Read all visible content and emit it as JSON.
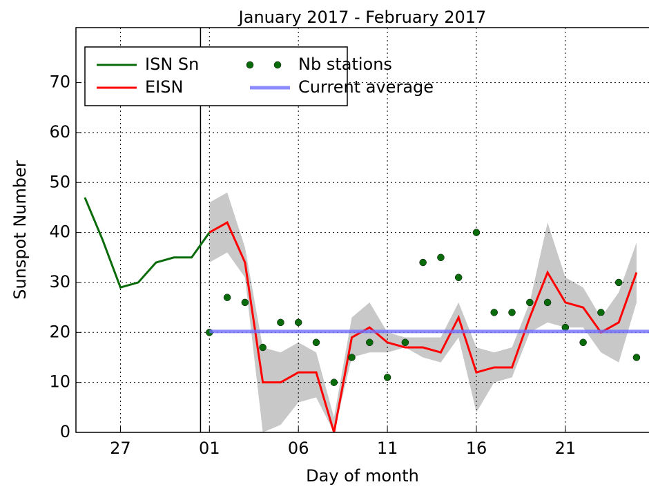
{
  "chart_data": {
    "type": "line",
    "title": "January 2017 - February 2017",
    "x_label": "Day of month",
    "y_label": "Sunspot Number",
    "xlim": [
      -7.5,
      24.7
    ],
    "ylim": [
      0,
      81
    ],
    "xticks": [
      {
        "value": -5,
        "label": "27"
      },
      {
        "value": 0,
        "label": "01"
      },
      {
        "value": 5,
        "label": "06"
      },
      {
        "value": 10,
        "label": "11"
      },
      {
        "value": 15,
        "label": "16"
      },
      {
        "value": 20,
        "label": "21"
      }
    ],
    "yticks": [
      0,
      10,
      20,
      30,
      40,
      50,
      60,
      70
    ],
    "grid": true,
    "vline": -0.5,
    "legend": "upper left",
    "band": {
      "color": "#c8c8c8",
      "x": [
        0,
        1,
        2,
        3,
        4,
        5,
        6,
        7,
        8,
        9,
        10,
        11,
        12,
        13,
        14,
        15,
        16,
        17,
        18,
        19,
        20,
        21,
        22,
        23,
        24
      ],
      "upper": [
        46,
        48,
        37,
        17,
        16,
        18,
        16,
        3,
        23,
        26,
        20,
        19,
        19,
        19,
        26,
        17,
        16,
        17,
        26,
        42,
        31,
        29,
        23,
        28,
        38
      ],
      "lower": [
        34,
        36,
        31,
        0,
        1.5,
        6,
        7,
        0,
        15,
        16,
        16,
        17,
        15,
        14,
        19,
        4,
        10,
        11,
        20,
        22,
        21,
        21,
        16,
        14,
        26
      ]
    },
    "series": [
      {
        "name": "ISN Sn",
        "type": "line",
        "color": "#0a6b0a",
        "x": [
          -7,
          -6,
          -5,
          -4,
          -3,
          -2,
          -1,
          0
        ],
        "values": [
          47,
          38.5,
          29,
          30,
          34,
          35,
          35,
          40
        ]
      },
      {
        "name": "EISN",
        "type": "line",
        "color": "#ff0000",
        "x": [
          0,
          1,
          2,
          3,
          4,
          5,
          6,
          7,
          8,
          9,
          10,
          11,
          12,
          13,
          14,
          15,
          16,
          17,
          18,
          19,
          20,
          21,
          22,
          23,
          24
        ],
        "values": [
          40,
          42,
          34,
          10,
          10,
          12,
          12,
          0,
          19,
          21,
          18,
          17,
          17,
          16,
          23,
          12,
          13,
          13,
          23,
          32,
          26,
          25,
          20,
          22,
          32
        ]
      },
      {
        "name": "Nb stations",
        "type": "scatter",
        "color": "#0a6b0a",
        "x": [
          0,
          1,
          2,
          3,
          4,
          5,
          6,
          7,
          8,
          9,
          10,
          11,
          12,
          13,
          14,
          15,
          16,
          17,
          18,
          19,
          20,
          21,
          22,
          23,
          24
        ],
        "values": [
          20,
          27,
          26,
          17,
          22,
          22,
          18,
          10,
          15,
          18,
          11,
          18,
          34,
          35,
          31,
          40,
          24,
          24,
          26,
          26,
          21,
          18,
          24,
          30,
          15
        ]
      },
      {
        "name": "Current average",
        "type": "line",
        "color": "#6f6fff",
        "x": [
          0,
          24.7
        ],
        "values": [
          20.2,
          20.2
        ]
      }
    ]
  }
}
